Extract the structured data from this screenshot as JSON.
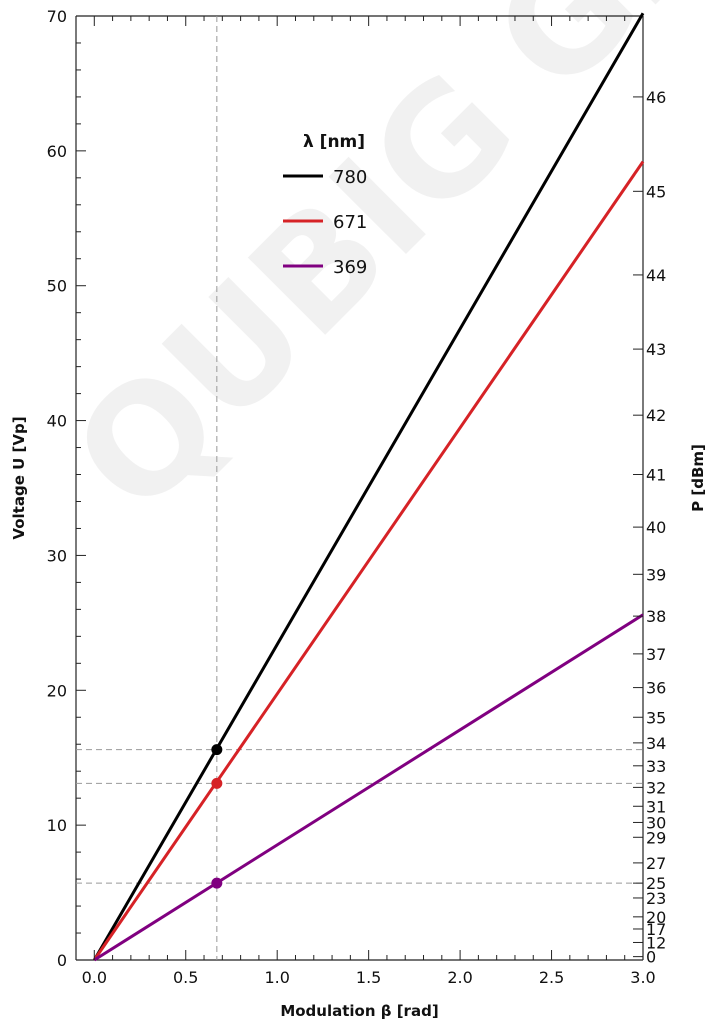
{
  "watermark": "QUBIG GmbH",
  "chart_data": {
    "type": "line",
    "x": [
      0,
      3
    ],
    "series": [
      {
        "name": "780",
        "color": "#000000",
        "values": [
          0,
          70.2
        ]
      },
      {
        "name": "671",
        "color": "#d62226",
        "values": [
          0,
          59.2
        ]
      },
      {
        "name": "369",
        "color": "#800080",
        "values": [
          0,
          25.6
        ]
      }
    ],
    "markers": {
      "x": 0.67,
      "points": [
        {
          "series": "780",
          "y": 15.6
        },
        {
          "series": "671",
          "y": 13.1
        },
        {
          "series": "369",
          "y": 5.7
        }
      ]
    },
    "xlabel": "Modulation β [rad]",
    "ylabel": "Voltage U [Vp]",
    "y2label": "P [dBm]",
    "xlim": [
      -0.1,
      3.0
    ],
    "ylim": [
      0,
      70
    ],
    "xticks": [
      "0.0",
      "0.5",
      "1.0",
      "1.5",
      "2.0",
      "2.5",
      "3.0"
    ],
    "xtick_values": [
      0,
      0.5,
      1.0,
      1.5,
      2.0,
      2.5,
      3.0
    ],
    "yticks": [
      "0",
      "10",
      "20",
      "30",
      "40",
      "50",
      "60",
      "70"
    ],
    "ytick_values": [
      0,
      10,
      20,
      30,
      40,
      50,
      60,
      70
    ],
    "right_axis": {
      "label": "P [dBm]",
      "ticks": [
        {
          "label": "0",
          "voltage": 0.25
        },
        {
          "label": "12",
          "voltage": 1.3
        },
        {
          "label": "17",
          "voltage": 2.3
        },
        {
          "label": "20",
          "voltage": 3.2
        },
        {
          "label": "23",
          "voltage": 4.6
        },
        {
          "label": "25",
          "voltage": 5.7
        },
        {
          "label": "27",
          "voltage": 7.2
        },
        {
          "label": "29",
          "voltage": 9.1
        },
        {
          "label": "30",
          "voltage": 10.2
        },
        {
          "label": "31",
          "voltage": 11.4
        },
        {
          "label": "32",
          "voltage": 12.8
        },
        {
          "label": "33",
          "voltage": 14.4
        },
        {
          "label": "34",
          "voltage": 16.1
        },
        {
          "label": "35",
          "voltage": 18.0
        },
        {
          "label": "36",
          "voltage": 20.2
        },
        {
          "label": "37",
          "voltage": 22.7
        },
        {
          "label": "38",
          "voltage": 25.5
        },
        {
          "label": "39",
          "voltage": 28.6
        },
        {
          "label": "40",
          "voltage": 32.1
        },
        {
          "label": "41",
          "voltage": 36.0
        },
        {
          "label": "42",
          "voltage": 40.4
        },
        {
          "label": "43",
          "voltage": 45.3
        },
        {
          "label": "44",
          "voltage": 50.8
        },
        {
          "label": "45",
          "voltage": 57.0
        },
        {
          "label": "46",
          "voltage": 64.0
        }
      ]
    },
    "legend": {
      "title": "λ [nm]",
      "position": "top-center",
      "entries": [
        "780",
        "671",
        "369"
      ]
    },
    "grid": false
  }
}
